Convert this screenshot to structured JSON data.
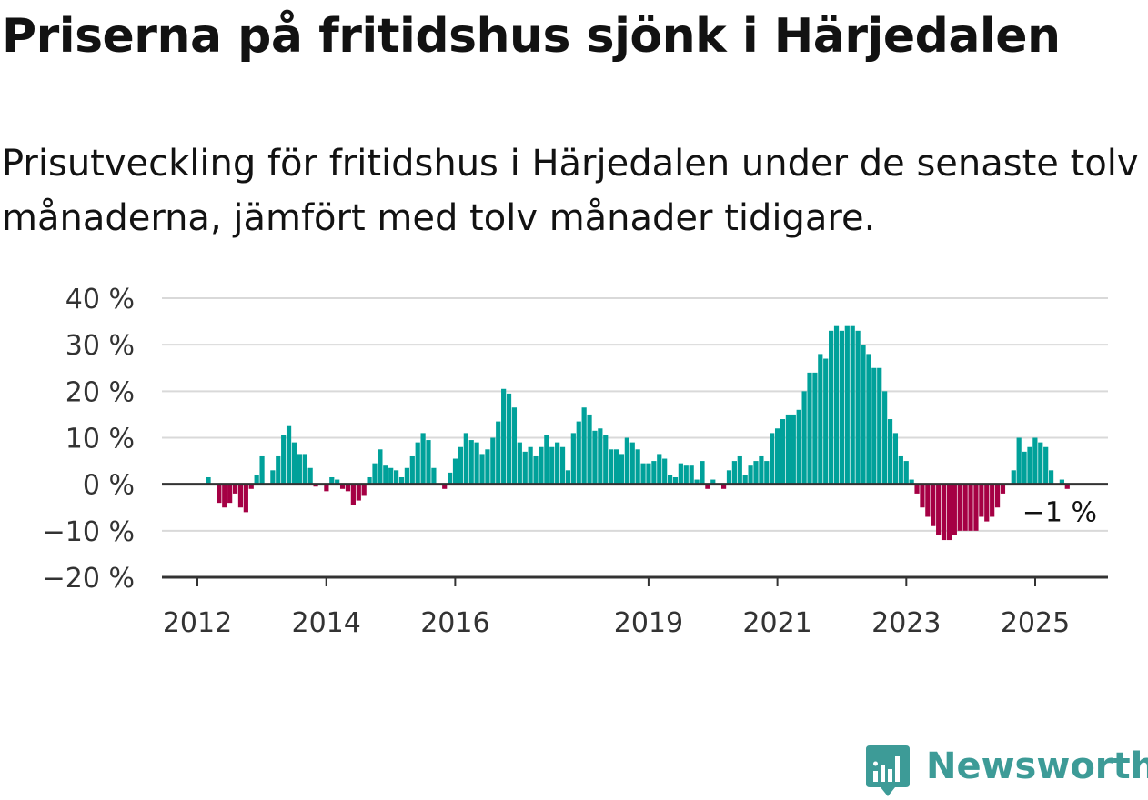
{
  "title": "Priserna på fritidshus sjönk i Härjedalen",
  "subtitle": "Prisutveckling för fritidshus i Härjedalen under de senaste tolv månaderna, jämfört med tolv månader tidigare.",
  "brand": {
    "name": "Newsworthy",
    "color": "#3d9b97",
    "icon": "newsworthy-chart-bubble-icon"
  },
  "colors": {
    "positive": "#00a19a",
    "negative": "#a50044",
    "grid": "#d9d9d9",
    "axis": "#333333"
  },
  "chart_data": {
    "type": "bar",
    "title": "Priserna på fritidshus sjönk i Härjedalen",
    "xlabel": "",
    "ylabel": "",
    "ylim": [
      -20,
      40
    ],
    "yticks": [
      40,
      30,
      20,
      10,
      0,
      -10,
      -20
    ],
    "ytick_labels": [
      "40 %",
      "30 %",
      "20 %",
      "10 %",
      "0 %",
      "−10 %",
      "−20 %"
    ],
    "xtick_labels": [
      "2012",
      "2014",
      "2016",
      "2019",
      "2021",
      "2023",
      "2025"
    ],
    "xtick_positions": [
      2012,
      2014,
      2016,
      2019,
      2021,
      2023,
      2025
    ],
    "x_start": 2012.17,
    "x_step": 0.0833,
    "grid": true,
    "annotation": "−1 %",
    "values": [
      1.5,
      0,
      -4,
      -5,
      -4,
      -2,
      -5,
      -6,
      -1,
      2,
      6,
      0,
      3,
      6,
      10.5,
      12.5,
      9,
      6.5,
      6.5,
      3.5,
      -0.5,
      0,
      -1.5,
      1.5,
      1,
      -1,
      -1.5,
      -4.5,
      -3.5,
      -2.5,
      1.5,
      4.5,
      7.5,
      4,
      3.5,
      3,
      1.5,
      3.5,
      6,
      9,
      11,
      9.5,
      3.5,
      0,
      -1,
      2.5,
      5.5,
      8,
      11,
      9.5,
      9,
      6.5,
      7.5,
      10,
      13.5,
      20.5,
      19.5,
      16.5,
      9,
      7,
      8,
      6,
      8,
      10.5,
      8,
      9,
      8,
      3,
      11,
      13.5,
      16.5,
      15,
      11.5,
      12,
      10.5,
      7.5,
      7.5,
      6.5,
      10,
      9,
      7.5,
      4.5,
      4.5,
      5,
      6.5,
      5.5,
      2,
      1.5,
      4.5,
      4,
      4,
      1,
      5,
      -1,
      1,
      0,
      -1,
      3,
      5,
      6,
      2,
      4,
      5,
      6,
      5,
      11,
      12,
      14,
      15,
      15,
      16,
      20,
      24,
      24,
      28,
      27,
      33,
      34,
      33,
      34,
      34,
      33,
      30,
      28,
      25,
      25,
      20,
      14,
      11,
      6,
      5,
      1,
      -2,
      -5,
      -7,
      -9,
      -11,
      -12,
      -12,
      -11,
      -10,
      -10,
      -10,
      -10,
      -7,
      -8,
      -7,
      -5,
      -2,
      0,
      3,
      10,
      7,
      8,
      10,
      9,
      8,
      3,
      0,
      1,
      -1
    ]
  }
}
